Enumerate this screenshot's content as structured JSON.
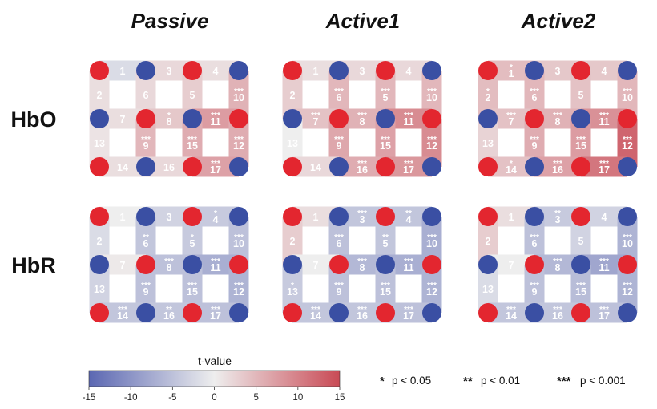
{
  "columns": [
    "Passive",
    "Active1",
    "Active2"
  ],
  "rows": [
    "HbO",
    "HbR"
  ],
  "colors": {
    "source": "#e3262f",
    "detector": "#3a4fa3",
    "neg_end": "#5b67b2",
    "mid": "#eeeeee",
    "pos_end": "#c94a55"
  },
  "colorbar": {
    "title": "t-value",
    "min": -15,
    "max": 15,
    "ticks": [
      "-15",
      "-10",
      "-5",
      "0",
      "5",
      "10",
      "15"
    ]
  },
  "legend": [
    {
      "stars": "*",
      "text": "p < 0.05"
    },
    {
      "stars": "**",
      "text": "p < 0.01"
    },
    {
      "stars": "***",
      "text": "p < 0.001"
    }
  ],
  "layout": {
    "grid_optodes": [
      [
        "source",
        "detector",
        "source",
        "detector"
      ],
      [
        "detector",
        "source",
        "detector",
        "source"
      ],
      [
        "source",
        "detector",
        "source",
        "detector"
      ]
    ],
    "channels": [
      {
        "id": "1",
        "dir": "h",
        "row": 0,
        "col": 0
      },
      {
        "id": "3",
        "dir": "h",
        "row": 0,
        "col": 1
      },
      {
        "id": "4",
        "dir": "h",
        "row": 0,
        "col": 2
      },
      {
        "id": "2",
        "dir": "v",
        "row": 0,
        "col": 0
      },
      {
        "id": "6",
        "dir": "v",
        "row": 0,
        "col": 1
      },
      {
        "id": "5",
        "dir": "v",
        "row": 0,
        "col": 2
      },
      {
        "id": "10",
        "dir": "v",
        "row": 0,
        "col": 3
      },
      {
        "id": "7",
        "dir": "h",
        "row": 1,
        "col": 0
      },
      {
        "id": "8",
        "dir": "h",
        "row": 1,
        "col": 1
      },
      {
        "id": "11",
        "dir": "h",
        "row": 1,
        "col": 2
      },
      {
        "id": "13",
        "dir": "v",
        "row": 1,
        "col": 0
      },
      {
        "id": "9",
        "dir": "v",
        "row": 1,
        "col": 1
      },
      {
        "id": "15",
        "dir": "v",
        "row": 1,
        "col": 2
      },
      {
        "id": "12",
        "dir": "v",
        "row": 1,
        "col": 3
      },
      {
        "id": "14",
        "dir": "h",
        "row": 2,
        "col": 0
      },
      {
        "id": "16",
        "dir": "h",
        "row": 2,
        "col": 1
      },
      {
        "id": "17",
        "dir": "h",
        "row": 2,
        "col": 2
      }
    ]
  },
  "panels": [
    {
      "row": "HbO",
      "column": "Passive",
      "t": {
        "1": -2,
        "2": 1.5,
        "3": 2,
        "4": 1.5,
        "5": 3,
        "6": 2,
        "7": 1.5,
        "8": 3.5,
        "9": 5,
        "10": 5.5,
        "11": 7.5,
        "12": 6,
        "13": 1,
        "14": 1.5,
        "15": 6,
        "16": 2,
        "17": 7
      },
      "sig": {
        "1": "",
        "2": "",
        "3": "",
        "4": "",
        "5": "",
        "6": "",
        "7": "",
        "8": "*",
        "9": "***",
        "10": "***",
        "11": "***",
        "12": "***",
        "13": "",
        "14": "",
        "15": "***",
        "16": "",
        "17": "***"
      }
    },
    {
      "row": "HbO",
      "column": "Active1",
      "t": {
        "1": 1.5,
        "2": 3,
        "3": 2,
        "4": 2,
        "5": 5,
        "6": 5,
        "7": 4,
        "8": 5.5,
        "9": 6.5,
        "10": 5,
        "11": 9,
        "12": 9,
        "13": 0,
        "14": 2,
        "15": 7,
        "16": 6,
        "17": 8
      },
      "sig": {
        "1": "",
        "2": "",
        "3": "",
        "4": "",
        "5": "***",
        "6": "***",
        "7": "***",
        "8": "***",
        "9": "***",
        "10": "***",
        "11": "***",
        "12": "***",
        "13": "",
        "14": "",
        "15": "***",
        "16": "***",
        "17": "***"
      }
    },
    {
      "row": "HbO",
      "column": "Active2",
      "t": {
        "1": 4.5,
        "2": 4.5,
        "3": 3.5,
        "4": 3.5,
        "5": 4,
        "6": 5,
        "7": 4,
        "8": 5.5,
        "9": 6,
        "10": 5,
        "11": 8.5,
        "12": 12.5,
        "13": 2.5,
        "14": 4,
        "15": 7.5,
        "16": 7,
        "17": 11
      },
      "sig": {
        "1": "*",
        "2": "*",
        "3": "",
        "4": "",
        "5": "",
        "6": "***",
        "7": "***",
        "8": "***",
        "9": "***",
        "10": "***",
        "11": "***",
        "12": "***",
        "13": "",
        "14": "*",
        "15": "***",
        "16": "***",
        "17": "***"
      }
    },
    {
      "row": "HbR",
      "column": "Passive",
      "t": {
        "1": 0,
        "2": -2,
        "3": -3,
        "4": -4,
        "5": -4,
        "6": -4.5,
        "7": 0.5,
        "8": -5,
        "9": -5,
        "10": -5,
        "11": -7,
        "12": -6.5,
        "13": -3,
        "14": -4.5,
        "15": -5,
        "16": -4.5,
        "17": -5
      },
      "sig": {
        "1": "",
        "2": "",
        "3": "",
        "4": "*",
        "5": "*",
        "6": "**",
        "7": "",
        "8": "***",
        "9": "***",
        "10": "***",
        "11": "***",
        "12": "***",
        "13": "",
        "14": "***",
        "15": "***",
        "16": "**",
        "17": "***"
      }
    },
    {
      "row": "HbR",
      "column": "Active1",
      "t": {
        "1": 1.5,
        "2": 3,
        "3": -4.5,
        "4": -4.5,
        "5": -4.5,
        "6": -5,
        "7": 0,
        "8": -6,
        "9": -5,
        "10": -7,
        "11": -7,
        "12": -6.5,
        "13": -4,
        "14": -4.5,
        "15": -5,
        "16": -4.5,
        "17": -5
      },
      "sig": {
        "1": "",
        "2": "",
        "3": "***",
        "4": "**",
        "5": "**",
        "6": "***",
        "7": "",
        "8": "***",
        "9": "***",
        "10": "***",
        "11": "***",
        "12": "***",
        "13": "*",
        "14": "***",
        "15": "***",
        "16": "***",
        "17": "***"
      }
    },
    {
      "row": "HbR",
      "column": "Active2",
      "t": {
        "1": 1.5,
        "2": 3,
        "3": -4,
        "4": -3,
        "5": -3,
        "6": -5,
        "7": 0,
        "8": -6,
        "9": -5,
        "10": -6.5,
        "11": -8,
        "12": -6.5,
        "13": -2,
        "14": -4.5,
        "15": -5.5,
        "16": -4.5,
        "17": -5
      },
      "sig": {
        "1": "",
        "2": "",
        "3": "**",
        "4": "",
        "5": "",
        "6": "***",
        "7": "",
        "8": "***",
        "9": "***",
        "10": "***",
        "11": "***",
        "12": "***",
        "13": "",
        "14": "***",
        "15": "***",
        "16": "***",
        "17": "***"
      }
    }
  ]
}
